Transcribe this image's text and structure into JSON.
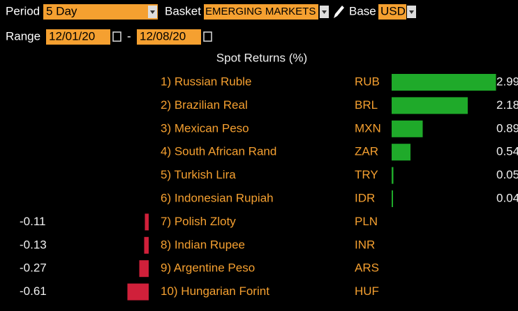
{
  "controls": {
    "period_label": "Period",
    "period": "5 Day",
    "basket_label": "Basket",
    "basket": "EMERGING MARKETS (",
    "base_label": "Base",
    "base": "USD",
    "range_label": "Range",
    "range_start": "12/01/20",
    "range_sep": "-",
    "range_end": "12/08/20"
  },
  "chart_data": {
    "type": "bar",
    "orientation": "horizontal",
    "title": "Spot Returns (%)",
    "categories": [
      "1) Russian Ruble",
      "2) Brazilian Real",
      "3) Mexican Peso",
      "4) South African Rand",
      "5) Turkish Lira",
      "6) Indonesian Rupiah",
      "7) Polish Zloty",
      "8) Indian Rupee",
      "9) Argentine Peso",
      "10) Hungarian Forint"
    ],
    "codes": [
      "RUB",
      "BRL",
      "MXN",
      "ZAR",
      "TRY",
      "IDR",
      "PLN",
      "INR",
      "ARS",
      "HUF"
    ],
    "values": [
      2.99,
      2.18,
      0.89,
      0.54,
      0.05,
      0.04,
      -0.11,
      -0.13,
      -0.27,
      -0.61
    ],
    "positive_color": "#1faa2a",
    "negative_color": "#d0203a"
  }
}
